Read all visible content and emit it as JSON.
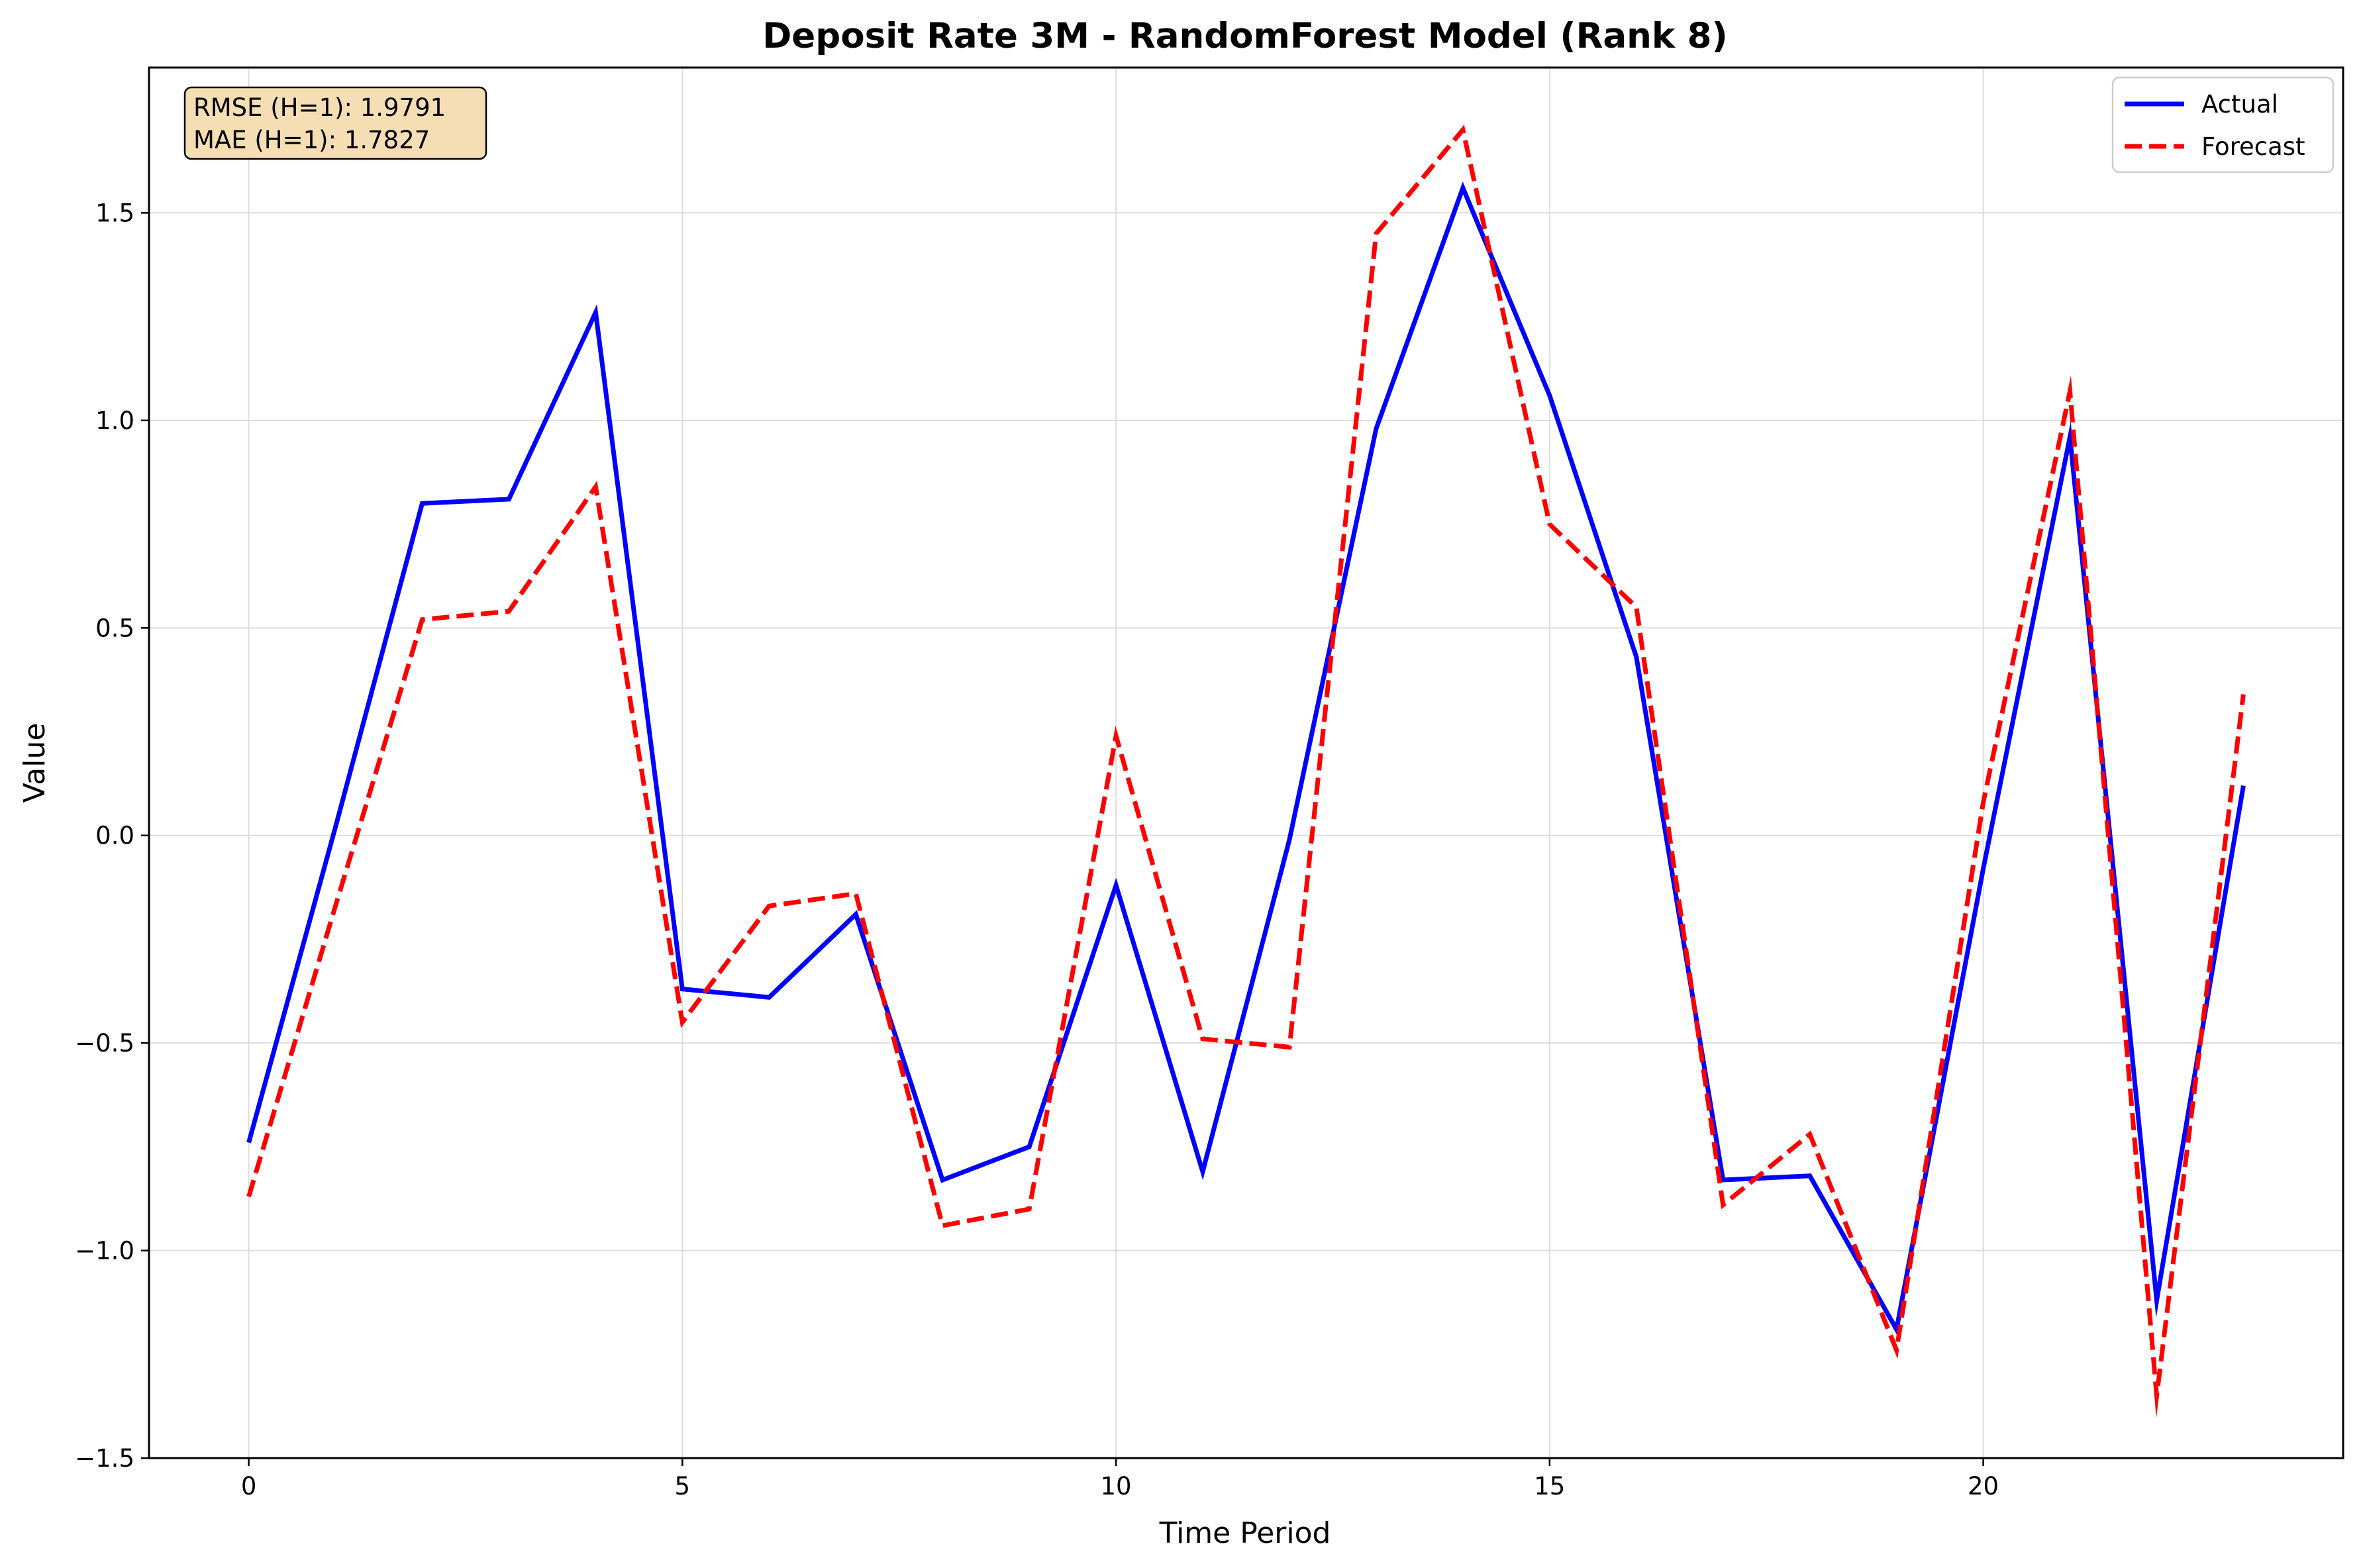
{
  "chart_data": {
    "type": "line",
    "title": "Deposit Rate 3M - RandomForest Model (Rank 8)",
    "xlabel": "Time Period",
    "ylabel": "Value",
    "xlim": [
      -1.15,
      24.15
    ],
    "ylim": [
      -1.5,
      1.85
    ],
    "x_ticks": [
      0,
      5,
      10,
      15,
      20
    ],
    "y_ticks": [
      -1.5,
      -1.0,
      -0.5,
      0.0,
      0.5,
      1.0,
      1.5
    ],
    "x_tick_labels": [
      "0",
      "5",
      "10",
      "15",
      "20"
    ],
    "y_tick_labels": [
      "−1.5",
      "−1.0",
      "−0.5",
      "0.0",
      "0.5",
      "1.0",
      "1.5"
    ],
    "grid": true,
    "legend_position": "top-right",
    "x": [
      0,
      1,
      2,
      3,
      4,
      5,
      6,
      7,
      8,
      9,
      10,
      11,
      12,
      13,
      14,
      15,
      16,
      17,
      18,
      19,
      20,
      21,
      22,
      23
    ],
    "series": [
      {
        "name": "Actual",
        "color": "#0000ff",
        "style": "solid",
        "values": [
          -0.74,
          0.02,
          0.8,
          0.81,
          1.26,
          -0.37,
          -0.39,
          -0.19,
          -0.83,
          -0.75,
          -0.12,
          -0.81,
          -0.01,
          0.98,
          1.56,
          1.06,
          0.43,
          -0.83,
          -0.82,
          -1.19,
          -0.08,
          0.96,
          -1.12,
          0.12
        ]
      },
      {
        "name": "Forecast",
        "color": "#ff0000",
        "style": "dashed",
        "values": [
          -0.87,
          -0.17,
          0.52,
          0.54,
          0.84,
          -0.45,
          -0.17,
          -0.14,
          -0.94,
          -0.9,
          0.24,
          -0.49,
          -0.51,
          1.45,
          1.7,
          0.75,
          0.55,
          -0.89,
          -0.72,
          -1.24,
          0.08,
          1.07,
          -1.35,
          0.34
        ]
      }
    ],
    "annotation": {
      "lines": [
        "RMSE (H=1): 1.9791",
        "MAE (H=1): 1.7827"
      ],
      "position": "top-left",
      "background": "#f5deb3"
    }
  }
}
